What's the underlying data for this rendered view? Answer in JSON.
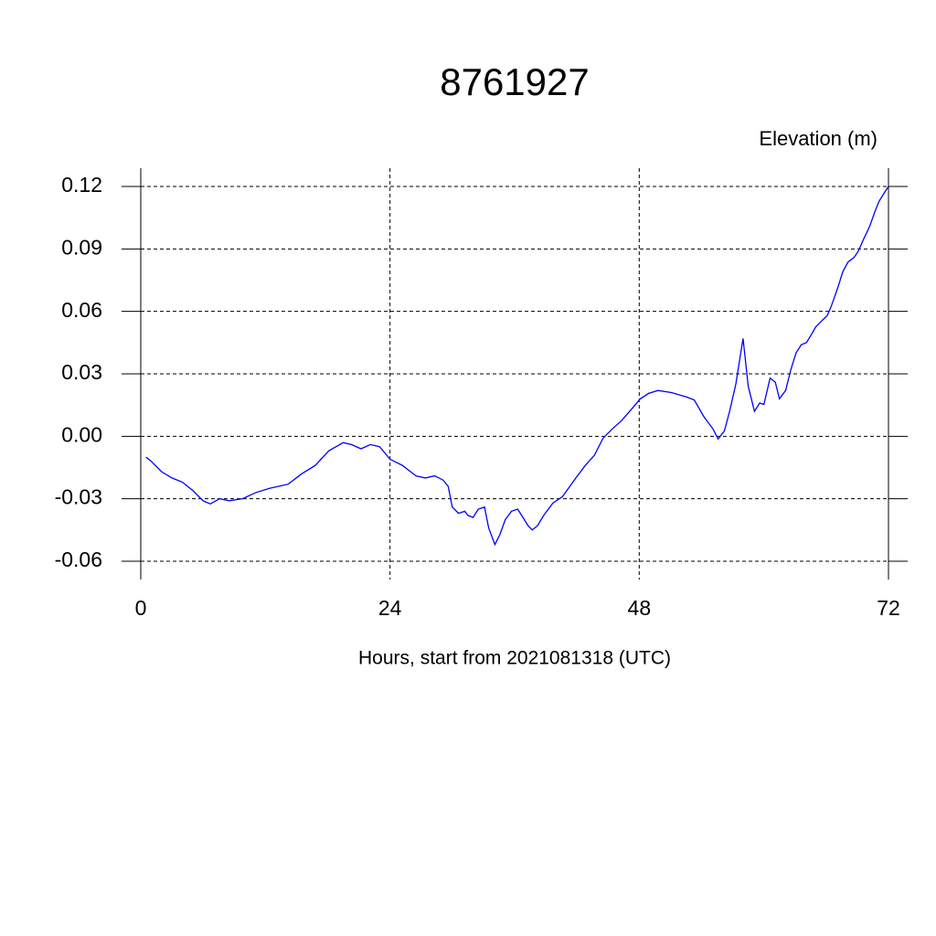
{
  "chart_data": {
    "type": "line",
    "title": "8761927",
    "y_label": "Elevation (m)",
    "x_label": "Hours, start from 2021081318 (UTC)",
    "x": [
      0.5,
      1.0,
      2.0,
      3.0,
      4.0,
      4.5,
      5.0,
      6.0,
      6.7,
      7.6,
      8.5,
      9.8,
      11.1,
      12.4,
      14.2,
      15.5,
      16.8,
      18.1,
      19.5,
      20.3,
      21.2,
      22.1,
      23.0,
      24.0,
      25.2,
      26.5,
      27.4,
      28.3,
      29.1,
      29.6,
      30.0,
      30.6,
      31.2,
      31.5,
      32.0,
      32.5,
      33.1,
      33.5,
      34.1,
      34.6,
      35.1,
      35.7,
      36.3,
      36.8,
      37.3,
      37.7,
      38.2,
      38.8,
      39.7,
      40.6,
      41.9,
      42.8,
      43.7,
      44.5,
      45.4,
      46.3,
      47.2,
      48.1,
      48.9,
      49.8,
      51.1,
      52.5,
      53.3,
      54.2,
      55.1,
      55.6,
      56.2,
      56.7,
      57.3,
      58.0,
      58.5,
      59.1,
      59.6,
      60.0,
      60.6,
      61.1,
      61.5,
      62.1,
      62.6,
      63.1,
      63.6,
      64.1,
      64.6,
      65.0,
      65.6,
      66.1,
      66.5,
      67.1,
      67.6,
      68.1,
      68.7,
      69.1,
      69.6,
      70.2,
      70.7,
      71.1,
      71.6,
      72.0
    ],
    "series": [
      {
        "name": "Elevation",
        "color": "#0000ff",
        "values": [
          -0.01,
          -0.012,
          -0.017,
          -0.02,
          -0.022,
          -0.024,
          -0.026,
          -0.031,
          -0.0325,
          -0.03,
          -0.031,
          -0.03,
          -0.027,
          -0.025,
          -0.023,
          -0.018,
          -0.014,
          -0.007,
          -0.003,
          -0.004,
          -0.006,
          -0.004,
          -0.005,
          -0.011,
          -0.014,
          -0.019,
          -0.02,
          -0.019,
          -0.021,
          -0.024,
          -0.034,
          -0.037,
          -0.036,
          -0.038,
          -0.039,
          -0.035,
          -0.034,
          -0.044,
          -0.052,
          -0.047,
          -0.04,
          -0.036,
          -0.035,
          -0.039,
          -0.043,
          -0.045,
          -0.043,
          -0.038,
          -0.032,
          -0.029,
          -0.02,
          -0.014,
          -0.009,
          -0.001,
          0.0035,
          0.0075,
          0.0127,
          0.018,
          0.0206,
          0.022,
          0.021,
          0.019,
          0.0175,
          0.0096,
          0.0035,
          -0.0013,
          0.0026,
          0.012,
          0.025,
          0.047,
          0.024,
          0.012,
          0.016,
          0.0153,
          0.028,
          0.026,
          0.018,
          0.022,
          0.032,
          0.04,
          0.044,
          0.045,
          0.049,
          0.0526,
          0.0556,
          0.058,
          0.0626,
          0.071,
          0.079,
          0.0837,
          0.086,
          0.089,
          0.0946,
          0.101,
          0.108,
          0.113,
          0.117,
          0.12
        ]
      }
    ],
    "xlim": [
      0,
      72
    ],
    "xticks": [
      0,
      24,
      48,
      72
    ],
    "ylim": [
      -0.0688,
      0.1288
    ],
    "yticks": [
      0.12,
      0.09,
      0.06,
      0.03,
      {
        "value": 0,
        "label": "0.00"
      },
      -0.03,
      -0.06
    ],
    "grid": true
  }
}
